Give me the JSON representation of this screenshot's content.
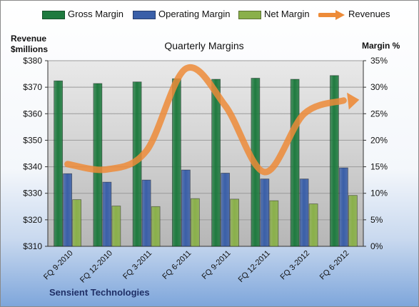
{
  "chart_data": {
    "type": "bar",
    "title": "Quarterly Margins",
    "categories": [
      "FQ 9-2010",
      "FQ 12-2010",
      "FQ 3-2011",
      "FQ 6-2011",
      "FQ 9-2011",
      "FQ 12-2011",
      "FQ 3-2012",
      "FQ 6-2012"
    ],
    "left_axis_label_line1": "Revenue",
    "left_axis_label_line2": "$millions",
    "right_axis_label": "Margin %",
    "left_ylim": [
      310,
      380
    ],
    "left_ticks": [
      "$310",
      "$320",
      "$330",
      "$340",
      "$350",
      "$360",
      "$370",
      "$380"
    ],
    "right_ylim": [
      0,
      35
    ],
    "right_ticks": [
      "0%",
      "5%",
      "10%",
      "15%",
      "20%",
      "25%",
      "30%",
      "35%"
    ],
    "grid": true,
    "legend_position": "top",
    "series": [
      {
        "name": "Gross Margin",
        "type": "bar",
        "axis": "right",
        "color": "#1f7a3f",
        "values": [
          31.2,
          30.7,
          31.0,
          31.6,
          31.5,
          31.7,
          31.5,
          32.2
        ]
      },
      {
        "name": "Operating Margin",
        "type": "bar",
        "axis": "right",
        "color": "#3a5fa8",
        "values": [
          13.7,
          12.1,
          12.5,
          14.4,
          13.8,
          12.7,
          12.7,
          14.8
        ]
      },
      {
        "name": "Net Margin",
        "type": "bar",
        "axis": "right",
        "color": "#8ab04a",
        "values": [
          8.8,
          7.6,
          7.5,
          9.0,
          8.9,
          8.6,
          8.0,
          9.6
        ]
      },
      {
        "name": "Revenues",
        "type": "line",
        "axis": "left",
        "color": "#ed8b38",
        "values": [
          341,
          339,
          346,
          377,
          363,
          338,
          360,
          365
        ]
      }
    ],
    "footer_text": "Sensient Technologies"
  }
}
